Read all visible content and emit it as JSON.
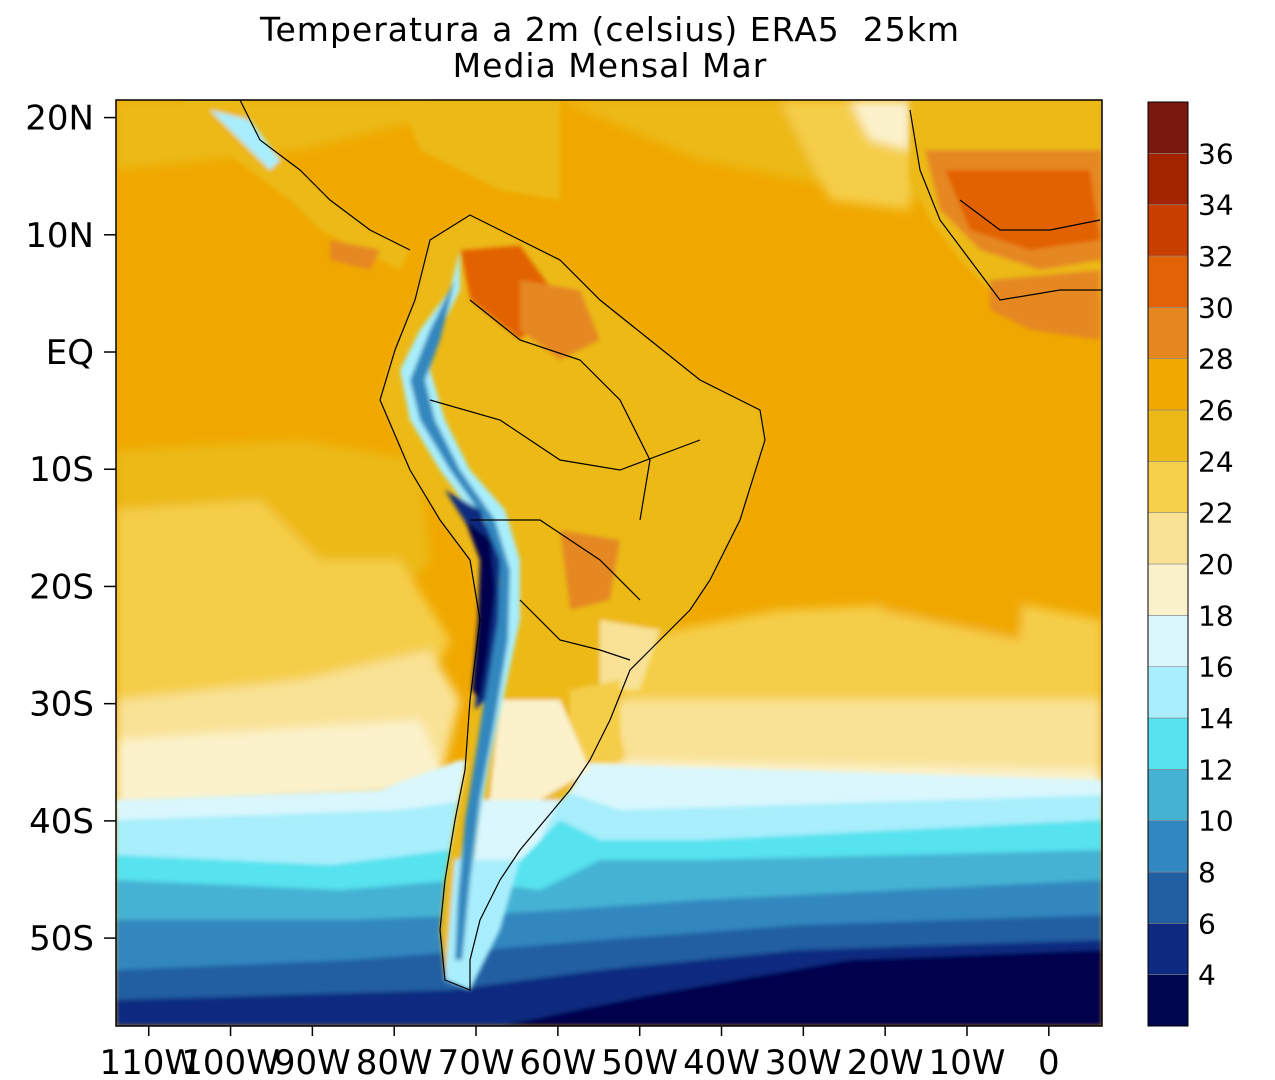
{
  "title": {
    "line1": "Temperatura a 2m (celsius) ERA5  25km",
    "line2": "Media Mensal Mar"
  },
  "axes": {
    "y_labels": [
      "20N",
      "10N",
      "EQ",
      "10S",
      "20S",
      "30S",
      "40S",
      "50S"
    ],
    "y_lat": [
      20,
      10,
      0,
      -10,
      -20,
      -30,
      -40,
      -50
    ],
    "x_labels": [
      "110W",
      "100W",
      "90W",
      "80W",
      "70W",
      "60W",
      "50W",
      "40W",
      "30W",
      "20W",
      "10W",
      "0"
    ],
    "x_lon": [
      -110,
      -100,
      -90,
      -80,
      -70,
      -60,
      -50,
      -40,
      -30,
      -20,
      -10,
      0
    ],
    "lon_range": [
      -114,
      6.5
    ],
    "lat_range": [
      -57.5,
      21.5
    ]
  },
  "colorbar": {
    "labels": [
      "4",
      "6",
      "8",
      "10",
      "12",
      "14",
      "16",
      "18",
      "20",
      "22",
      "24",
      "26",
      "28",
      "30",
      "32",
      "34",
      "36"
    ],
    "colors": [
      "#00064e",
      "#0e2a80",
      "#225fa2",
      "#3187bf",
      "#45b2d3",
      "#56e2ef",
      "#a8eefc",
      "#d9f7fd",
      "#fbf2cc",
      "#f9e295",
      "#f5ce4a",
      "#ecb917",
      "#f0a800",
      "#e58820",
      "#e36205",
      "#c93f02",
      "#a32500",
      "#7a1810"
    ]
  }
}
